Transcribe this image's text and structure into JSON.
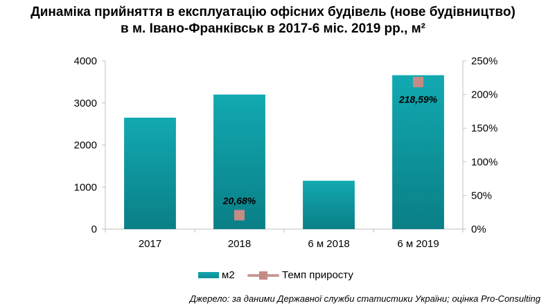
{
  "title": {
    "line1": "Динаміка прийняття в експлуатацію офісних будівель (нове будівництво)",
    "line2": "в м. Івано-Франківськ в 2017-6 міс. 2019 рр., м²"
  },
  "legend": {
    "bar_label": "м2",
    "line_label": "Темп  приросту"
  },
  "source": "Джерело: за даними Державної служби статистики України; оцінка Pro-Consulting",
  "colors": {
    "bar_top": "#12a9b1",
    "bar_bottom": "#0a7f86",
    "marker": "#c58b85",
    "axis": "#bfbfbf"
  },
  "chart_data": {
    "type": "bar",
    "categories": [
      "2017",
      "2018",
      "6 м 2018",
      "6 м 2019"
    ],
    "series": [
      {
        "name": "м2",
        "type": "bar",
        "axis": "left",
        "values": [
          2650,
          3200,
          1150,
          3660
        ]
      },
      {
        "name": "Темп  приросту",
        "type": "scatter",
        "axis": "right",
        "values": [
          null,
          20.68,
          null,
          218.59
        ],
        "labels": [
          null,
          "20,68%",
          null,
          "218,59%"
        ]
      }
    ],
    "ylim_left": [
      0,
      4000
    ],
    "yticks_left": [
      "0",
      "1000",
      "2000",
      "3000",
      "4000"
    ],
    "ylim_right": [
      0,
      250
    ],
    "yticks_right": [
      "0%",
      "50%",
      "100%",
      "150%",
      "200%",
      "250%"
    ],
    "grid": false,
    "legend_position": "bottom"
  }
}
